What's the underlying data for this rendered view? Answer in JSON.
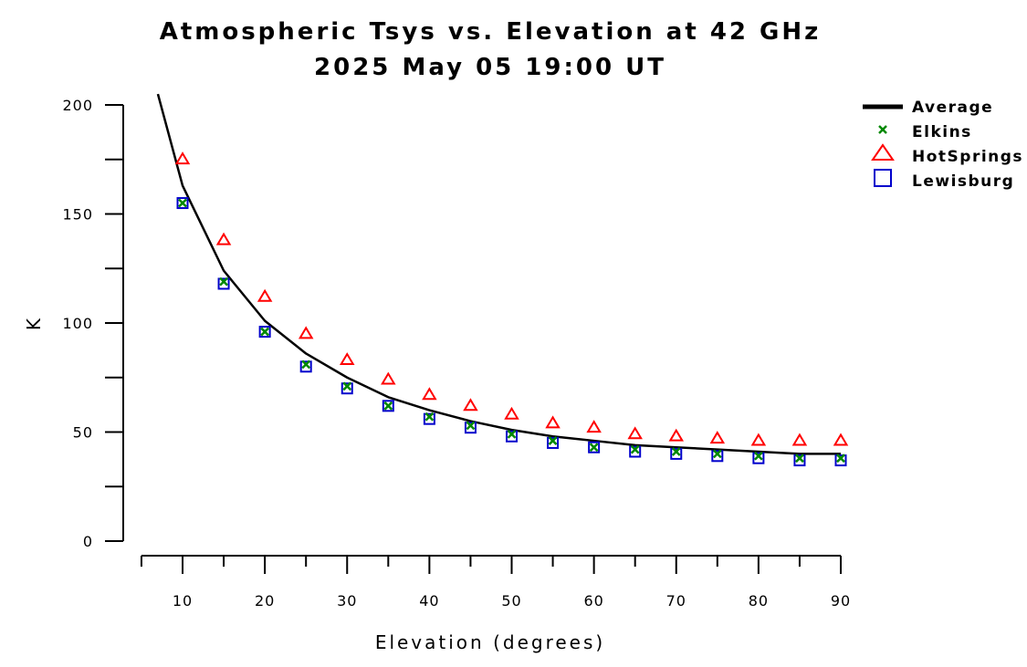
{
  "chart_data": {
    "type": "line",
    "title": "Atmospheric Tsys vs. Elevation at 42 GHz",
    "subtitle": "2025 May 05 19:00 UT",
    "xlabel": "Elevation (degrees)",
    "ylabel": "K",
    "xlim": [
      5,
      90
    ],
    "ylim": [
      0,
      200
    ],
    "x_ticks": [
      10,
      20,
      30,
      40,
      50,
      60,
      70,
      80,
      90
    ],
    "y_ticks": [
      0,
      50,
      100,
      150,
      200
    ],
    "grid": false,
    "legend_position": "top-right",
    "x": [
      10,
      15,
      20,
      25,
      30,
      35,
      40,
      45,
      50,
      55,
      60,
      65,
      70,
      75,
      80,
      85,
      90
    ],
    "average_line": {
      "x": [
        7,
        10,
        15,
        20,
        25,
        30,
        35,
        40,
        45,
        50,
        55,
        60,
        65,
        70,
        75,
        80,
        85,
        90
      ],
      "values": [
        205,
        163,
        124,
        101,
        86,
        75,
        66,
        60,
        55,
        51,
        48,
        46,
        44,
        43,
        42,
        41,
        40,
        40
      ]
    },
    "series": [
      {
        "name": "Average",
        "marker": "line",
        "color": "#000000",
        "values": [
          163,
          124,
          101,
          86,
          75,
          66,
          60,
          55,
          51,
          48,
          46,
          44,
          43,
          42,
          41,
          40,
          40
        ]
      },
      {
        "name": "Elkins",
        "marker": "x",
        "color": "#008800",
        "values": [
          155,
          119,
          96,
          81,
          71,
          62,
          57,
          53,
          49,
          46,
          43,
          42,
          41,
          40,
          39,
          38,
          38
        ]
      },
      {
        "name": "HotSprings",
        "marker": "triangle",
        "color": "#ff0000",
        "values": [
          175,
          138,
          112,
          95,
          83,
          74,
          67,
          62,
          58,
          54,
          52,
          49,
          48,
          47,
          46,
          46,
          46
        ]
      },
      {
        "name": "Lewisburg",
        "marker": "square",
        "color": "#0000cc",
        "values": [
          155,
          118,
          96,
          80,
          70,
          62,
          56,
          52,
          48,
          45,
          43,
          41,
          40,
          39,
          38,
          37,
          37
        ]
      }
    ]
  }
}
